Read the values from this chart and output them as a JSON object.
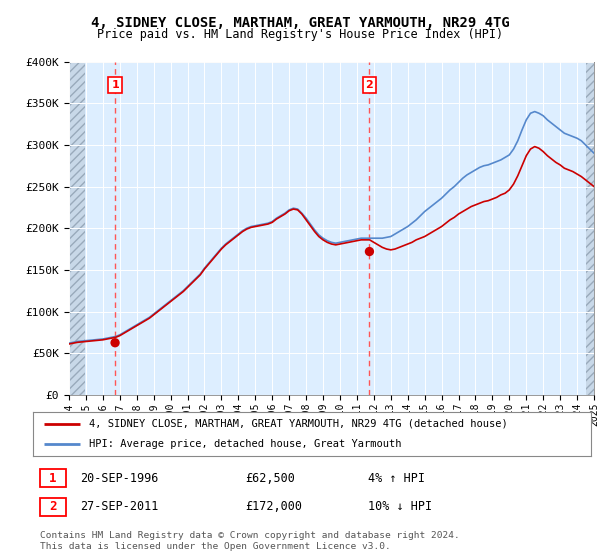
{
  "title": "4, SIDNEY CLOSE, MARTHAM, GREAT YARMOUTH, NR29 4TG",
  "subtitle": "Price paid vs. HM Land Registry's House Price Index (HPI)",
  "ylim": [
    0,
    400000
  ],
  "xlim_year": [
    1994,
    2025
  ],
  "purchase1": {
    "date": "20-SEP-1996",
    "price": 62500,
    "label": "1",
    "year": 1996.72
  },
  "purchase2": {
    "date": "27-SEP-2011",
    "price": 172000,
    "label": "2",
    "year": 2011.74
  },
  "legend_line1": "4, SIDNEY CLOSE, MARTHAM, GREAT YARMOUTH, NR29 4TG (detached house)",
  "legend_line2": "HPI: Average price, detached house, Great Yarmouth",
  "footer": "Contains HM Land Registry data © Crown copyright and database right 2024.\nThis data is licensed under the Open Government Licence v3.0.",
  "hpi_color": "#5588cc",
  "price_color": "#cc0000",
  "chart_bg_color": "#ddeeff",
  "hatch_color": "#bbccdd",
  "grid_color": "#aabbcc",
  "dashed_line_color": "#ff5555",
  "hpi_years": [
    1994.0,
    1994.25,
    1994.5,
    1994.75,
    1995.0,
    1995.25,
    1995.5,
    1995.75,
    1996.0,
    1996.25,
    1996.5,
    1996.75,
    1997.0,
    1997.25,
    1997.5,
    1997.75,
    1998.0,
    1998.25,
    1998.5,
    1998.75,
    1999.0,
    1999.25,
    1999.5,
    1999.75,
    2000.0,
    2000.25,
    2000.5,
    2000.75,
    2001.0,
    2001.25,
    2001.5,
    2001.75,
    2002.0,
    2002.25,
    2002.5,
    2002.75,
    2003.0,
    2003.25,
    2003.5,
    2003.75,
    2004.0,
    2004.25,
    2004.5,
    2004.75,
    2005.0,
    2005.25,
    2005.5,
    2005.75,
    2006.0,
    2006.25,
    2006.5,
    2006.75,
    2007.0,
    2007.25,
    2007.5,
    2007.75,
    2008.0,
    2008.25,
    2008.5,
    2008.75,
    2009.0,
    2009.25,
    2009.5,
    2009.75,
    2010.0,
    2010.25,
    2010.5,
    2010.75,
    2011.0,
    2011.25,
    2011.5,
    2011.75,
    2012.0,
    2012.25,
    2012.5,
    2012.75,
    2013.0,
    2013.25,
    2013.5,
    2013.75,
    2014.0,
    2014.25,
    2014.5,
    2014.75,
    2015.0,
    2015.25,
    2015.5,
    2015.75,
    2016.0,
    2016.25,
    2016.5,
    2016.75,
    2017.0,
    2017.25,
    2017.5,
    2017.75,
    2018.0,
    2018.25,
    2018.5,
    2018.75,
    2019.0,
    2019.25,
    2019.5,
    2019.75,
    2020.0,
    2020.25,
    2020.5,
    2020.75,
    2021.0,
    2021.25,
    2021.5,
    2021.75,
    2022.0,
    2022.25,
    2022.5,
    2022.75,
    2023.0,
    2023.25,
    2023.5,
    2023.75,
    2024.0,
    2024.25,
    2024.5,
    2024.75,
    2025.0
  ],
  "hpi_values": [
    62000,
    63000,
    64000,
    64500,
    65000,
    65500,
    66000,
    66500,
    67000,
    68000,
    69000,
    70000,
    72000,
    75000,
    78000,
    81000,
    84000,
    87000,
    90000,
    93000,
    97000,
    101000,
    105000,
    109000,
    113000,
    117000,
    121000,
    125000,
    130000,
    135000,
    140000,
    145000,
    152000,
    158000,
    164000,
    170000,
    176000,
    181000,
    185000,
    189000,
    193000,
    197000,
    200000,
    202000,
    203000,
    204000,
    205000,
    206000,
    208000,
    212000,
    215000,
    218000,
    222000,
    224000,
    223000,
    218000,
    212000,
    205000,
    198000,
    192000,
    188000,
    185000,
    183000,
    182000,
    183000,
    184000,
    185000,
    186000,
    187000,
    188000,
    188000,
    188000,
    188000,
    188000,
    188000,
    189000,
    190000,
    193000,
    196000,
    199000,
    202000,
    206000,
    210000,
    215000,
    220000,
    224000,
    228000,
    232000,
    236000,
    241000,
    246000,
    250000,
    255000,
    260000,
    264000,
    267000,
    270000,
    273000,
    275000,
    276000,
    278000,
    280000,
    282000,
    285000,
    288000,
    295000,
    305000,
    318000,
    330000,
    338000,
    340000,
    338000,
    335000,
    330000,
    326000,
    322000,
    318000,
    314000,
    312000,
    310000,
    308000,
    305000,
    300000,
    295000,
    290000
  ],
  "price_years": [
    1994.0,
    1994.25,
    1994.5,
    1994.75,
    1995.0,
    1995.25,
    1995.5,
    1995.75,
    1996.0,
    1996.25,
    1996.5,
    1996.75,
    1997.0,
    1997.25,
    1997.5,
    1997.75,
    1998.0,
    1998.25,
    1998.5,
    1998.75,
    1999.0,
    1999.25,
    1999.5,
    1999.75,
    2000.0,
    2000.25,
    2000.5,
    2000.75,
    2001.0,
    2001.25,
    2001.5,
    2001.75,
    2002.0,
    2002.25,
    2002.5,
    2002.75,
    2003.0,
    2003.25,
    2003.5,
    2003.75,
    2004.0,
    2004.25,
    2004.5,
    2004.75,
    2005.0,
    2005.25,
    2005.5,
    2005.75,
    2006.0,
    2006.25,
    2006.5,
    2006.75,
    2007.0,
    2007.25,
    2007.5,
    2007.75,
    2008.0,
    2008.25,
    2008.5,
    2008.75,
    2009.0,
    2009.25,
    2009.5,
    2009.75,
    2010.0,
    2010.25,
    2010.5,
    2010.75,
    2011.0,
    2011.25,
    2011.5,
    2011.75,
    2012.0,
    2012.25,
    2012.5,
    2012.75,
    2013.0,
    2013.25,
    2013.5,
    2013.75,
    2014.0,
    2014.25,
    2014.5,
    2014.75,
    2015.0,
    2015.25,
    2015.5,
    2015.75,
    2016.0,
    2016.25,
    2016.5,
    2016.75,
    2017.0,
    2017.25,
    2017.5,
    2017.75,
    2018.0,
    2018.25,
    2018.5,
    2018.75,
    2019.0,
    2019.25,
    2019.5,
    2019.75,
    2020.0,
    2020.25,
    2020.5,
    2020.75,
    2021.0,
    2021.25,
    2021.5,
    2021.75,
    2022.0,
    2022.25,
    2022.5,
    2022.75,
    2023.0,
    2023.25,
    2023.5,
    2023.75,
    2024.0,
    2024.25,
    2024.5,
    2024.75,
    2025.0
  ],
  "price_values": [
    61000,
    62000,
    63000,
    63500,
    64000,
    64500,
    65000,
    65500,
    66000,
    67000,
    68000,
    69000,
    71000,
    74000,
    77000,
    80000,
    83000,
    86000,
    89000,
    92000,
    96000,
    100000,
    104000,
    108000,
    112000,
    116000,
    120000,
    124000,
    129000,
    134000,
    139000,
    144000,
    151000,
    157000,
    163000,
    169000,
    175000,
    180000,
    184000,
    188000,
    192000,
    196000,
    199000,
    201000,
    202000,
    203000,
    204000,
    205000,
    207000,
    211000,
    214000,
    217000,
    221000,
    223000,
    222000,
    217000,
    210000,
    203000,
    196000,
    190000,
    186000,
    183000,
    181000,
    180000,
    181000,
    182000,
    183000,
    184000,
    185000,
    186000,
    186000,
    186000,
    183000,
    180000,
    177000,
    175000,
    174000,
    175000,
    177000,
    179000,
    181000,
    183000,
    186000,
    188000,
    190000,
    193000,
    196000,
    199000,
    202000,
    206000,
    210000,
    213000,
    217000,
    220000,
    223000,
    226000,
    228000,
    230000,
    232000,
    233000,
    235000,
    237000,
    240000,
    242000,
    246000,
    253000,
    263000,
    275000,
    287000,
    295000,
    298000,
    296000,
    292000,
    287000,
    283000,
    279000,
    276000,
    272000,
    270000,
    268000,
    265000,
    262000,
    258000,
    254000,
    250000
  ]
}
